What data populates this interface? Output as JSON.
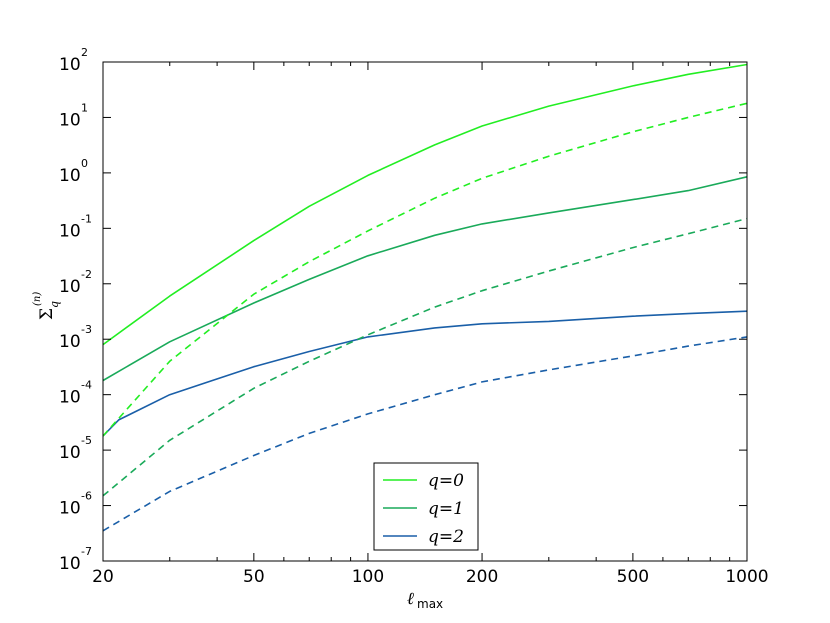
{
  "chart_data": {
    "type": "line",
    "xscale": "log",
    "yscale": "log",
    "xlim": [
      20,
      1000
    ],
    "ylim": [
      1e-07,
      100
    ],
    "grid": false,
    "legend_placement": "lower-center",
    "x_ticks": [
      {
        "value": 20,
        "label": "20"
      },
      {
        "value": 50,
        "label": "50"
      },
      {
        "value": 100,
        "label": "100"
      },
      {
        "value": 200,
        "label": "200"
      },
      {
        "value": 500,
        "label": "500"
      },
      {
        "value": 1000,
        "label": "1000"
      }
    ],
    "y_ticks": [
      {
        "value": 1e-07,
        "base": "10",
        "exp": "-7"
      },
      {
        "value": 1e-06,
        "base": "10",
        "exp": "-6"
      },
      {
        "value": 1e-05,
        "base": "10",
        "exp": "-5"
      },
      {
        "value": 0.0001,
        "base": "10",
        "exp": "-4"
      },
      {
        "value": 0.001,
        "base": "10",
        "exp": "-3"
      },
      {
        "value": 0.01,
        "base": "10",
        "exp": "-2"
      },
      {
        "value": 0.1,
        "base": "10",
        "exp": "-1"
      },
      {
        "value": 1,
        "base": "10",
        "exp": "0"
      },
      {
        "value": 10,
        "base": "10",
        "exp": "1"
      },
      {
        "value": 100,
        "base": "10",
        "exp": "2"
      }
    ],
    "xlabel": {
      "main": "ℓ",
      "sub": "max"
    },
    "ylabel": {
      "main": "Σ",
      "sub": "q",
      "sup": "(n)"
    },
    "series": [
      {
        "name": "q=0",
        "color": "#22ee22",
        "dash": "solid",
        "x": [
          20,
          30,
          50,
          70,
          100,
          150,
          200,
          300,
          500,
          700,
          1000
        ],
        "y": [
          0.0008,
          0.006,
          0.06,
          0.25,
          0.9,
          3.2,
          7.0,
          16,
          37,
          60,
          90
        ]
      },
      {
        "name": "q=1",
        "color": "#1aaa5a",
        "dash": "solid",
        "x": [
          20,
          30,
          50,
          70,
          100,
          150,
          200,
          300,
          500,
          700,
          1000
        ],
        "y": [
          0.00018,
          0.0009,
          0.0045,
          0.012,
          0.032,
          0.075,
          0.12,
          0.19,
          0.33,
          0.48,
          0.85
        ]
      },
      {
        "name": "q=2",
        "color": "#1a5fa8",
        "dash": "solid",
        "x": [
          20,
          22,
          30,
          50,
          70,
          100,
          150,
          200,
          300,
          500,
          700,
          1000
        ],
        "y": [
          1.8e-05,
          3.5e-05,
          0.0001,
          0.00032,
          0.0006,
          0.0011,
          0.0016,
          0.0019,
          0.0021,
          0.0026,
          0.0029,
          0.0032
        ]
      },
      {
        "color": "#22ee22",
        "dash": "dashed",
        "x": [
          20,
          30,
          50,
          70,
          100,
          150,
          200,
          300,
          500,
          700,
          1000
        ],
        "y": [
          1.8e-05,
          0.0004,
          0.0065,
          0.025,
          0.09,
          0.35,
          0.8,
          2.0,
          5.5,
          10,
          18
        ]
      },
      {
        "color": "#1aaa5a",
        "dash": "dashed",
        "x": [
          20,
          30,
          50,
          70,
          100,
          150,
          200,
          300,
          500,
          700,
          1000
        ],
        "y": [
          1.5e-06,
          1.5e-05,
          0.00013,
          0.0004,
          0.0012,
          0.0038,
          0.0075,
          0.017,
          0.045,
          0.08,
          0.15
        ]
      },
      {
        "color": "#1a5fa8",
        "dash": "dashed",
        "x": [
          20,
          30,
          50,
          70,
          100,
          150,
          200,
          300,
          500,
          700,
          1000
        ],
        "y": [
          3.5e-07,
          1.8e-06,
          8e-06,
          2e-05,
          4.5e-05,
          0.0001,
          0.00017,
          0.00028,
          0.0005,
          0.00075,
          0.0011
        ]
      }
    ]
  }
}
